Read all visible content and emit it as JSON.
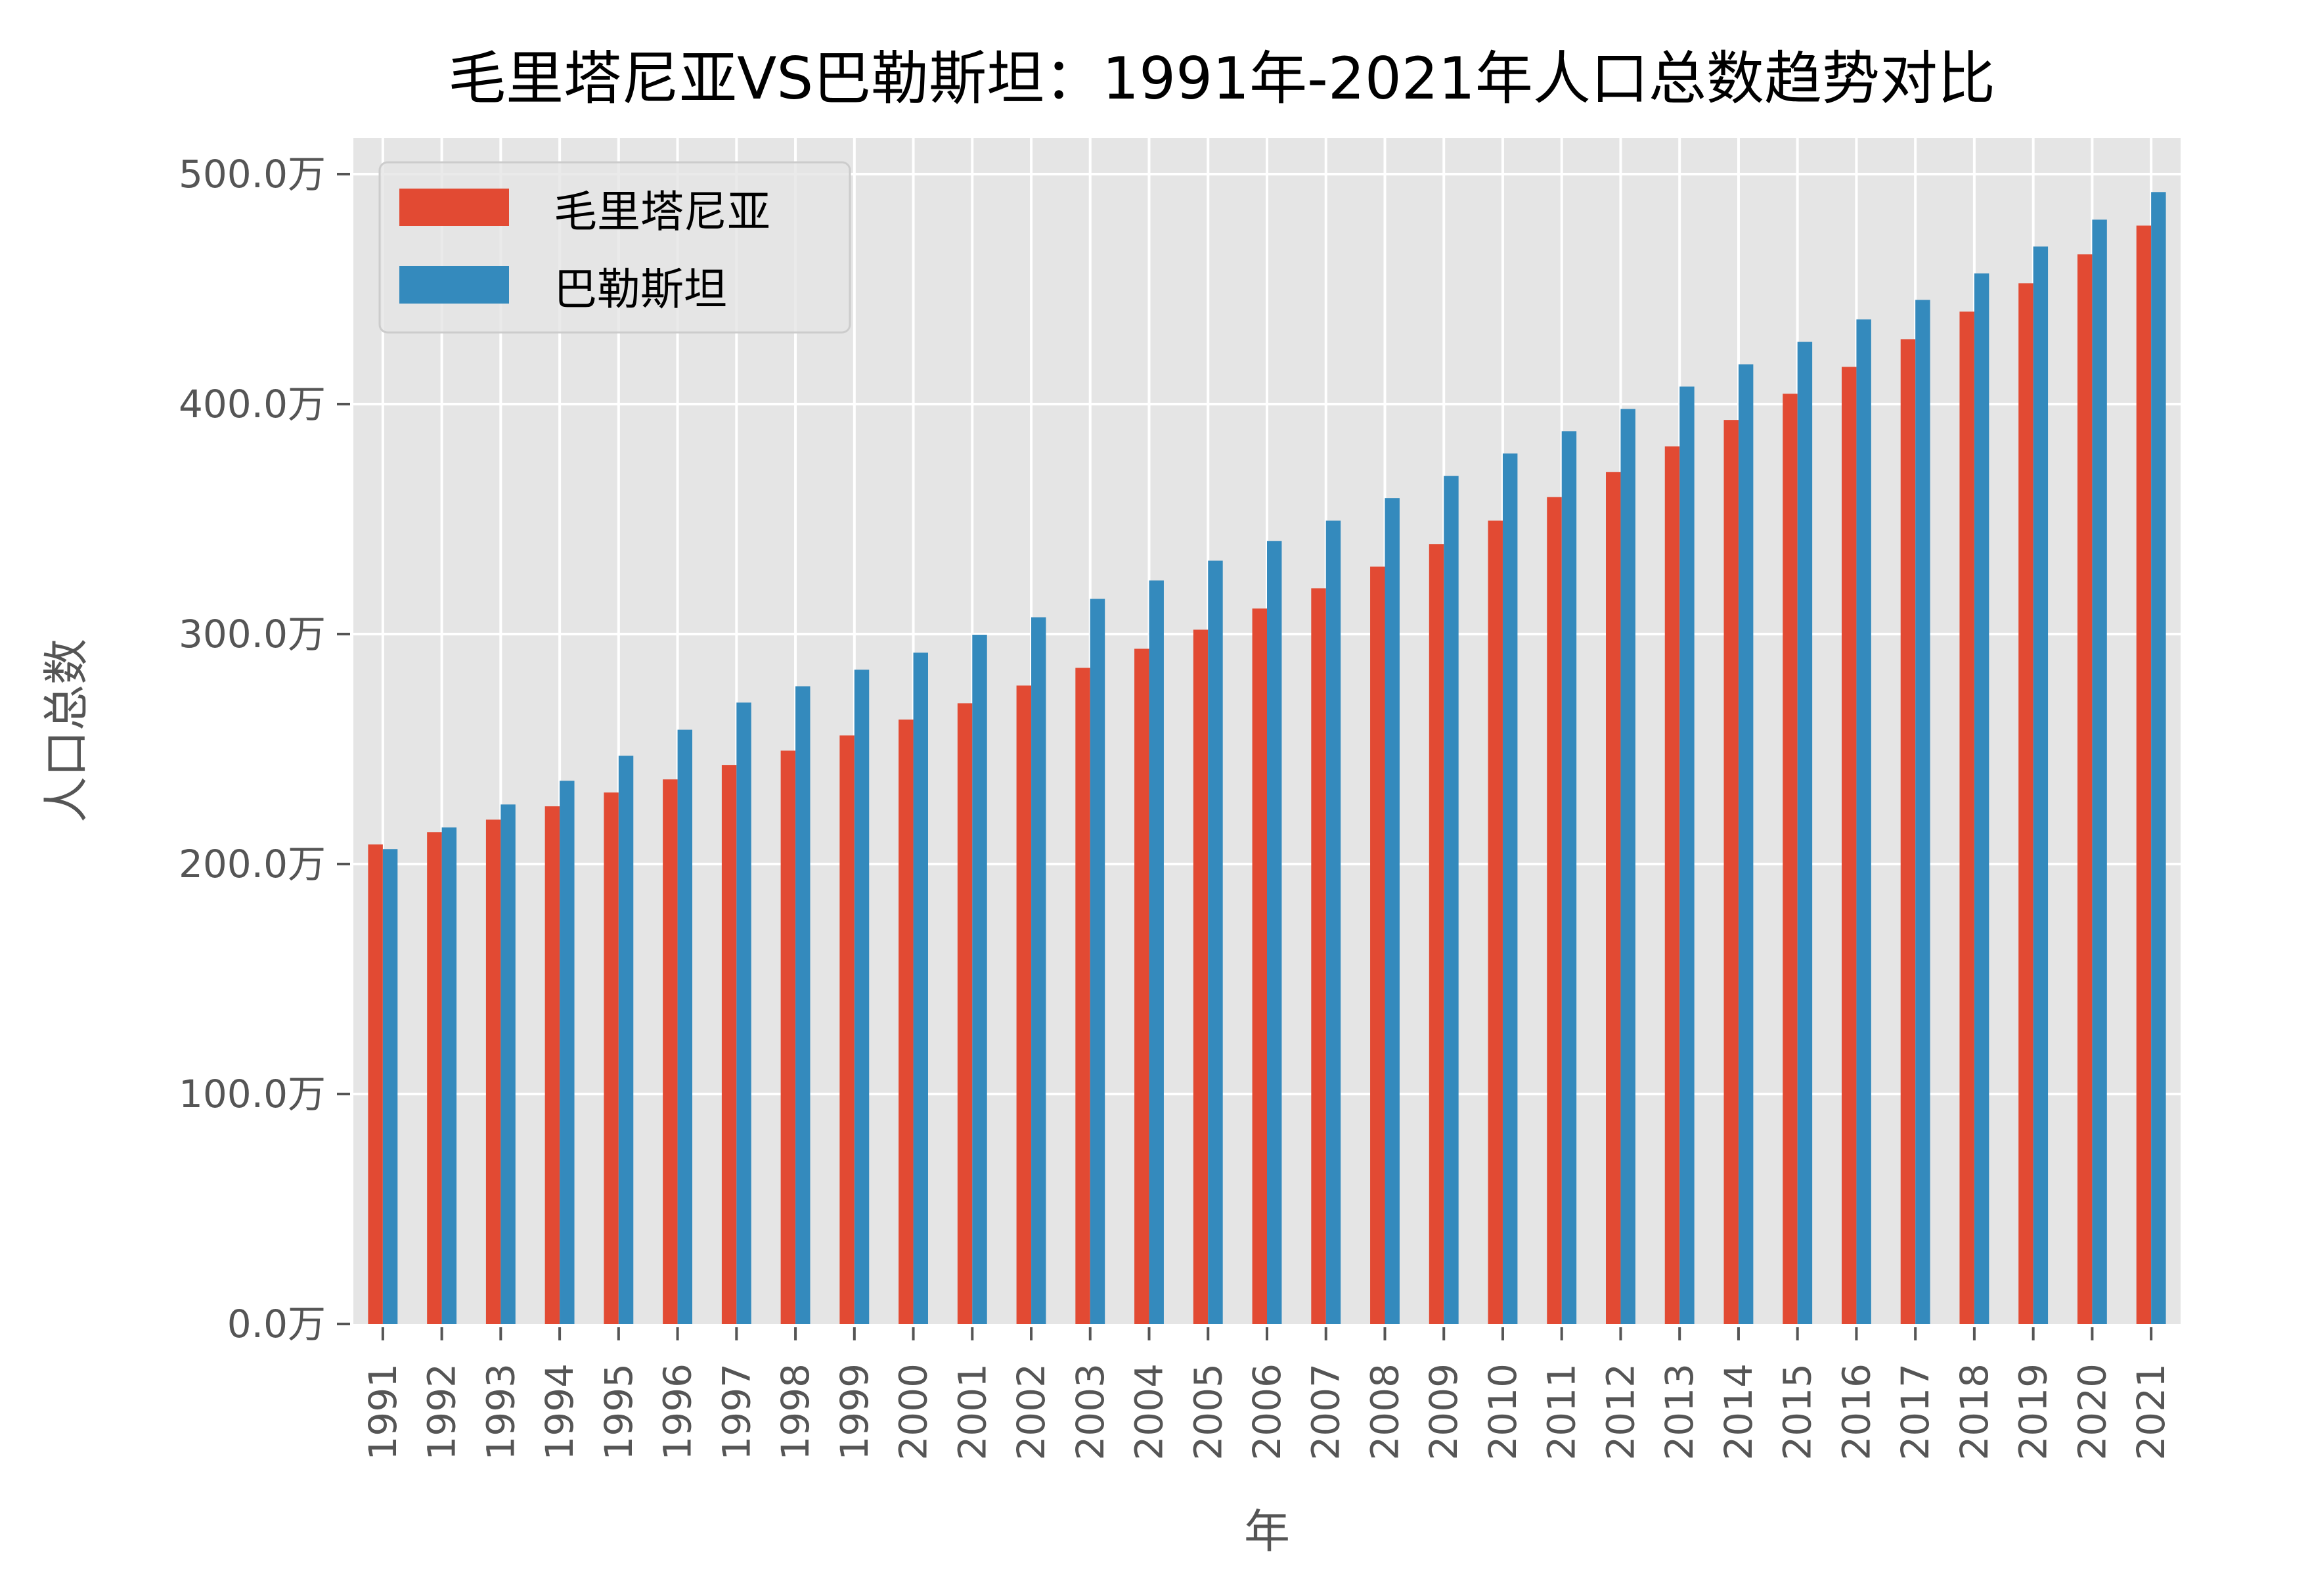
{
  "chart_data": {
    "type": "bar",
    "title": "毛里塔尼亚VS巴勒斯坦：1991年-2021年人口总数趋势对比",
    "xlabel": "年",
    "ylabel": "人口总数",
    "unit": "万",
    "ylim": [
      0,
      515
    ],
    "yticks": [
      0,
      100,
      200,
      300,
      400,
      500
    ],
    "ytick_labels": [
      "0.0万",
      "100.0万",
      "200.0万",
      "300.0万",
      "400.0万",
      "500.0万"
    ],
    "grid": true,
    "legend_position": "top-left",
    "categories": [
      "1991",
      "1992",
      "1993",
      "1994",
      "1995",
      "1996",
      "1997",
      "1998",
      "1999",
      "2000",
      "2001",
      "2002",
      "2003",
      "2004",
      "2005",
      "2006",
      "2007",
      "2008",
      "2009",
      "2010",
      "2011",
      "2012",
      "2013",
      "2014",
      "2015",
      "2016",
      "2017",
      "2018",
      "2019",
      "2020",
      "2021"
    ],
    "series": [
      {
        "name": "毛里塔尼亚",
        "color": "#E24A33",
        "values": [
          208.5,
          213.9,
          219.3,
          225.1,
          231.1,
          236.8,
          243.1,
          249.3,
          255.9,
          262.8,
          269.9,
          277.6,
          285.3,
          293.6,
          301.9,
          311.1,
          319.9,
          329.3,
          339.1,
          349.3,
          359.6,
          370.5,
          381.6,
          393.1,
          404.5,
          416.2,
          428.2,
          440.2,
          452.5,
          465.1,
          477.6
        ]
      },
      {
        "name": "巴勒斯坦",
        "color": "#348ABD",
        "values": [
          206.5,
          215.9,
          225.9,
          236.2,
          247.1,
          258.4,
          270.2,
          277.3,
          284.5,
          291.9,
          299.7,
          307.3,
          315.3,
          323.3,
          331.9,
          340.5,
          349.3,
          359.1,
          368.8,
          378.5,
          388.2,
          397.9,
          407.6,
          417.3,
          427.1,
          436.8,
          445.3,
          456.8,
          468.5,
          480.2,
          492.2
        ]
      }
    ]
  }
}
